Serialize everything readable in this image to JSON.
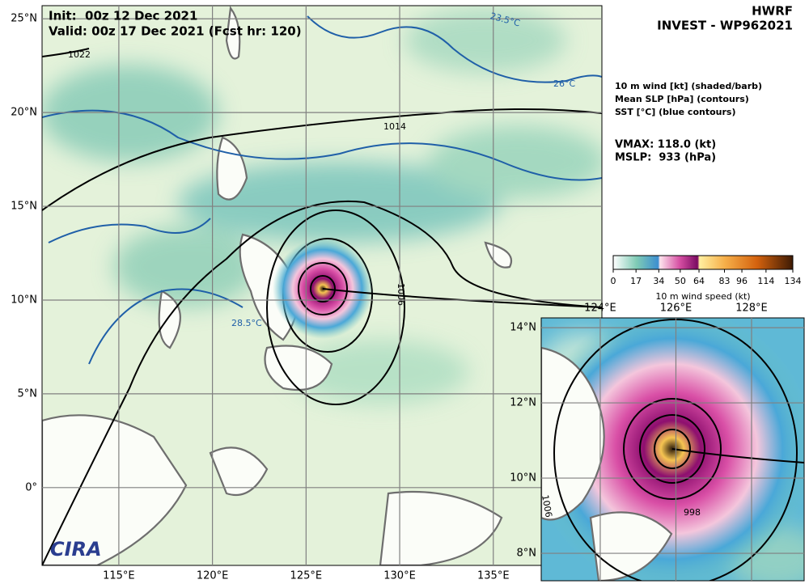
{
  "header": {
    "init": "Init:  00z 12 Dec 2021",
    "valid": "Valid: 00z 17 Dec 2021 (Fcst hr: 120)",
    "model": "HWRF",
    "storm": "INVEST - WP962021"
  },
  "legend": {
    "lines": [
      "10 m wind [kt] (shaded/barb)",
      "Mean SLP [hPa] (contours)",
      "SST [°C] (blue contours)"
    ]
  },
  "stats": {
    "vmax": "VMAX: 118.0 (kt)",
    "mslp": "MSLP:  933 (hPa)"
  },
  "colorbar": {
    "label": "10 m wind speed (kt)",
    "lim": [
      0,
      134
    ],
    "ticks": [
      0,
      17,
      34,
      50,
      64,
      83,
      96,
      114,
      134
    ]
  },
  "main_map": {
    "lonlim": [
      110.9,
      140.8
    ],
    "latlim": [
      -4.15,
      25.7
    ],
    "lonticks": [
      {
        "value": 115,
        "label": "115°E"
      },
      {
        "value": 120,
        "label": "120°E"
      },
      {
        "value": 125,
        "label": "125°E"
      },
      {
        "value": 130,
        "label": "130°E"
      },
      {
        "value": 135,
        "label": "135°E"
      }
    ],
    "latticks": [
      {
        "value": 0,
        "label": "0°"
      },
      {
        "value": 5,
        "label": "5°N"
      },
      {
        "value": 10,
        "label": "10°N"
      },
      {
        "value": 15,
        "label": "15°N"
      },
      {
        "value": 20,
        "label": "20°N"
      },
      {
        "value": 25,
        "label": "25°N"
      }
    ],
    "contour_labels": [
      "1022",
      "1014",
      "1006",
      "23.5°C",
      "26°C",
      "28.5°C"
    ]
  },
  "inset_map": {
    "lonlim": [
      122.44,
      129.39
    ],
    "latlim": [
      7.27,
      14.26
    ],
    "lonticks": [
      {
        "value": 124,
        "label": "124°E"
      },
      {
        "value": 126,
        "label": "126°E"
      },
      {
        "value": 128,
        "label": "128°E"
      }
    ],
    "latticks": [
      {
        "value": 8,
        "label": "8°N"
      },
      {
        "value": 10,
        "label": "10°N"
      },
      {
        "value": 12,
        "label": "12°N"
      },
      {
        "value": 14,
        "label": "14°N"
      }
    ],
    "contour_labels": [
      "1006",
      "998"
    ]
  },
  "logo": "CIRA"
}
